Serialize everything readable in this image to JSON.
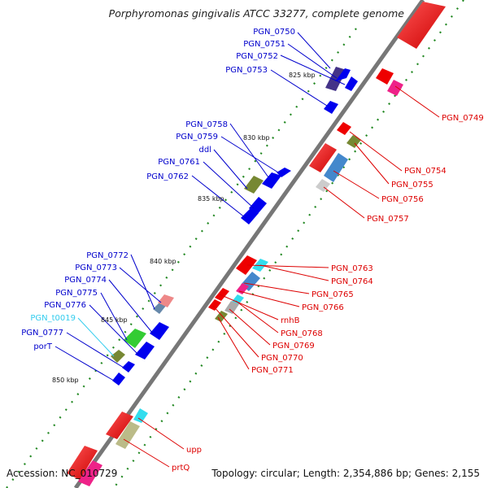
{
  "title": "Porphyromonas gingivalis ATCC 33277, complete genome",
  "footer": {
    "accession": "Accession: NC_010729",
    "topology": "Topology: circular; Length: 2,354,886 bp; Genes: 2,155"
  },
  "scale_labels": [
    "825 kbp",
    "830 kbp",
    "835 kbp",
    "840 kbp",
    "845 kbp",
    "850 kbp"
  ],
  "genes_left": [
    {
      "name": "PGN_0750",
      "color": "#0000cc"
    },
    {
      "name": "PGN_0751",
      "color": "#0000cc"
    },
    {
      "name": "PGN_0752",
      "color": "#0000cc"
    },
    {
      "name": "PGN_0753",
      "color": "#0000cc"
    },
    {
      "name": "PGN_0758",
      "color": "#0000cc"
    },
    {
      "name": "PGN_0759",
      "color": "#0000cc"
    },
    {
      "name": "ddl",
      "color": "#0000cc"
    },
    {
      "name": "PGN_0761",
      "color": "#0000cc"
    },
    {
      "name": "PGN_0762",
      "color": "#0000cc"
    },
    {
      "name": "PGN_0772",
      "color": "#0000cc"
    },
    {
      "name": "PGN_0773",
      "color": "#0000cc"
    },
    {
      "name": "PGN_0774",
      "color": "#0000cc"
    },
    {
      "name": "PGN_0775",
      "color": "#0000cc"
    },
    {
      "name": "PGN_0776",
      "color": "#0000cc"
    },
    {
      "name": "PGN_t0019",
      "color": "#33ccee"
    },
    {
      "name": "PGN_0777",
      "color": "#0000cc"
    },
    {
      "name": "porT",
      "color": "#0000cc"
    }
  ],
  "genes_right": [
    {
      "name": "PGN_0749",
      "color": "#dd0000"
    },
    {
      "name": "PGN_0754",
      "color": "#dd0000"
    },
    {
      "name": "PGN_0755",
      "color": "#dd0000"
    },
    {
      "name": "PGN_0756",
      "color": "#dd0000"
    },
    {
      "name": "PGN_0757",
      "color": "#dd0000"
    },
    {
      "name": "PGN_0763",
      "color": "#dd0000"
    },
    {
      "name": "PGN_0764",
      "color": "#dd0000"
    },
    {
      "name": "PGN_0765",
      "color": "#dd0000"
    },
    {
      "name": "PGN_0766",
      "color": "#dd0000"
    },
    {
      "name": "rnhB",
      "color": "#dd0000"
    },
    {
      "name": "PGN_0768",
      "color": "#dd0000"
    },
    {
      "name": "PGN_0769",
      "color": "#dd0000"
    },
    {
      "name": "PGN_0770",
      "color": "#dd0000"
    },
    {
      "name": "PGN_0771",
      "color": "#dd0000"
    },
    {
      "name": "upp",
      "color": "#dd0000"
    },
    {
      "name": "prtQ",
      "color": "#dd0000"
    }
  ],
  "colors": {
    "forward_strand": "#0000ee",
    "reverse_strand": "#ee0000",
    "backbone": "#777777",
    "ticks": "#228822"
  }
}
